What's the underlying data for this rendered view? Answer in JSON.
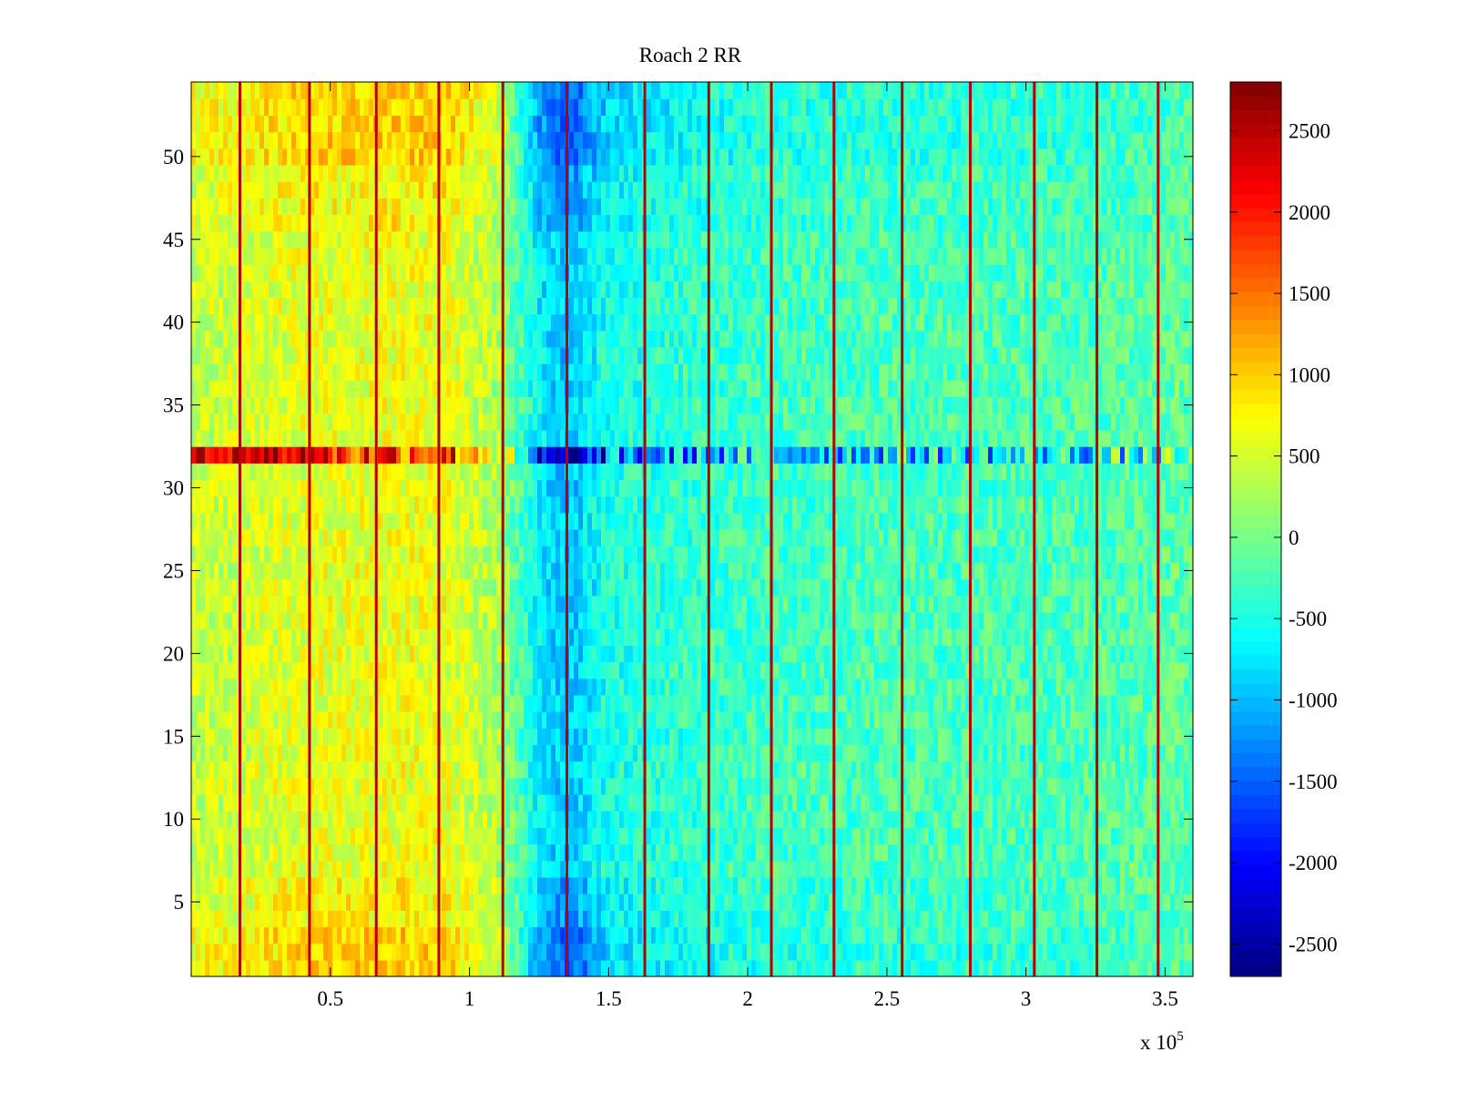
{
  "chart_data": {
    "type": "heatmap",
    "title": "Roach 2 RR",
    "xlabel": "",
    "ylabel": "",
    "x_exponent_label": "x 10",
    "x_exponent_power": "5",
    "x_multiplier": 100000,
    "xlim": [
      0,
      3.6
    ],
    "ylim": [
      0.5,
      54.5
    ],
    "x_ticks": [
      0.5,
      1,
      1.5,
      2,
      2.5,
      3,
      3.5
    ],
    "x_tick_labels": [
      "0.5",
      "1",
      "1.5",
      "2",
      "2.5",
      "3",
      "3.5"
    ],
    "y_ticks": [
      5,
      10,
      15,
      20,
      25,
      30,
      35,
      40,
      45,
      50
    ],
    "y_tick_labels": [
      "5",
      "10",
      "15",
      "20",
      "25",
      "30",
      "35",
      "40",
      "45",
      "50"
    ],
    "rows": 54,
    "colorbar": {
      "colormap": "jet",
      "clim": [
        -2700,
        2800
      ],
      "ticks": [
        -2500,
        -2000,
        -1500,
        -1000,
        -500,
        0,
        500,
        1000,
        1500,
        2000,
        2500
      ],
      "tick_labels": [
        "-2500",
        "-2000",
        "-1500",
        "-1000",
        "-500",
        "0",
        "500",
        "1000",
        "1500",
        "2000",
        "2500"
      ]
    },
    "vertical_stripes_x": [
      0.175,
      0.425,
      0.665,
      0.89,
      1.12,
      1.35,
      1.63,
      1.86,
      2.085,
      2.31,
      2.555,
      2.8,
      3.03,
      3.255,
      3.475
    ],
    "stripe_value": 2500,
    "anomalous_row": 32,
    "column_profile": [
      {
        "x": 0.0,
        "value": 400
      },
      {
        "x": 0.4,
        "value": 600
      },
      {
        "x": 0.9,
        "value": 650
      },
      {
        "x": 1.1,
        "value": 300
      },
      {
        "x": 1.25,
        "value": -700
      },
      {
        "x": 1.35,
        "value": -1000
      },
      {
        "x": 1.5,
        "value": -500
      },
      {
        "x": 2.0,
        "value": -300
      },
      {
        "x": 2.5,
        "value": -250
      },
      {
        "x": 3.0,
        "value": -250
      },
      {
        "x": 3.6,
        "value": -150
      }
    ],
    "grid": false,
    "legend": "none"
  }
}
